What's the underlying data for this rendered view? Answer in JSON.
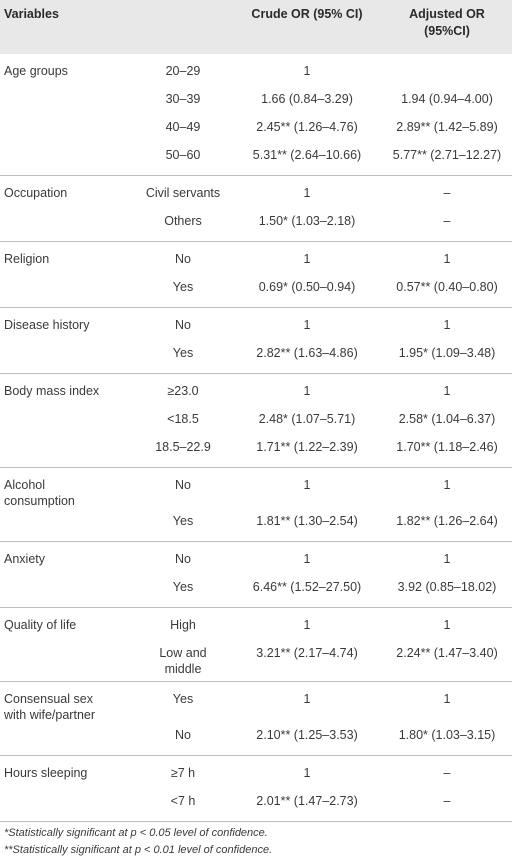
{
  "header": {
    "variables": "Variables",
    "crude": "Crude OR (95% CI)",
    "adjusted_line1": "Adjusted OR",
    "adjusted_line2": "(95%CI)"
  },
  "groups": [
    {
      "variable": [
        "Age groups"
      ],
      "rows": [
        {
          "level": "20–29",
          "crude": "1",
          "adjusted": ""
        },
        {
          "level": "30–39",
          "crude": "1.66 (0.84–3.29)",
          "adjusted": "1.94 (0.94–4.00)"
        },
        {
          "level": "40–49",
          "crude": "2.45** (1.26–4.76)",
          "adjusted": "2.89** (1.42–5.89)"
        },
        {
          "level": "50–60",
          "crude": "5.31** (2.64–10.66)",
          "adjusted": "5.77** (2.71–12.27)"
        }
      ]
    },
    {
      "variable": [
        "Occupation"
      ],
      "rows": [
        {
          "level": "Civil servants",
          "crude": "1",
          "adjusted": "–"
        },
        {
          "level": "Others",
          "crude": "1.50* (1.03–2.18)",
          "adjusted": "–"
        }
      ]
    },
    {
      "variable": [
        "Religion"
      ],
      "rows": [
        {
          "level": "No",
          "crude": "1",
          "adjusted": "1"
        },
        {
          "level": "Yes",
          "crude": "0.69* (0.50–0.94)",
          "adjusted": "0.57** (0.40–0.80)"
        }
      ]
    },
    {
      "variable": [
        "Disease history"
      ],
      "rows": [
        {
          "level": "No",
          "crude": "1",
          "adjusted": "1"
        },
        {
          "level": "Yes",
          "crude": "2.82** (1.63–4.86)",
          "adjusted": "1.95* (1.09–3.48)"
        }
      ]
    },
    {
      "variable": [
        "Body mass index"
      ],
      "rows": [
        {
          "level": "≥23.0",
          "crude": "1",
          "adjusted": "1"
        },
        {
          "level": "<18.5",
          "crude": "2.48* (1.07–5.71)",
          "adjusted": "2.58* (1.04–6.37)"
        },
        {
          "level": "18.5–22.9",
          "crude": "1.71** (1.22–2.39)",
          "adjusted": "1.70** (1.18–2.46)"
        }
      ]
    },
    {
      "variable": [
        "Alcohol",
        "consumption"
      ],
      "rows": [
        {
          "level": "No",
          "crude": "1",
          "adjusted": "1"
        },
        {
          "level": "Yes",
          "crude": "1.81** (1.30–2.54)",
          "adjusted": "1.82** (1.26–2.64)"
        }
      ]
    },
    {
      "variable": [
        "Anxiety"
      ],
      "rows": [
        {
          "level": "No",
          "crude": "1",
          "adjusted": "1"
        },
        {
          "level": "Yes",
          "crude": "6.46** (1.52–27.50)",
          "adjusted": "3.92 (0.85–18.02)"
        }
      ]
    },
    {
      "variable": [
        "Quality of life"
      ],
      "rows": [
        {
          "level": "High",
          "crude": "1",
          "adjusted": "1"
        },
        {
          "level": "Low and middle",
          "crude": "3.21** (2.17–4.74)",
          "adjusted": "2.24** (1.47–3.40)"
        }
      ]
    },
    {
      "variable": [
        "Consensual sex",
        "with wife/partner"
      ],
      "rows": [
        {
          "level": "Yes",
          "crude": "1",
          "adjusted": "1"
        },
        {
          "level": "No",
          "crude": "2.10** (1.25–3.53)",
          "adjusted": "1.80* (1.03–3.15)"
        }
      ]
    },
    {
      "variable": [
        "Hours sleeping"
      ],
      "rows": [
        {
          "level": "≥7 h",
          "crude": "1",
          "adjusted": "–"
        },
        {
          "level": "<7 h",
          "crude": "2.01** (1.47–2.73)",
          "adjusted": "–"
        }
      ]
    }
  ],
  "footnotes": [
    "*Statistically significant at p < 0.05 level of confidence.",
    "**Statistically significant at p < 0.01 level of confidence."
  ]
}
